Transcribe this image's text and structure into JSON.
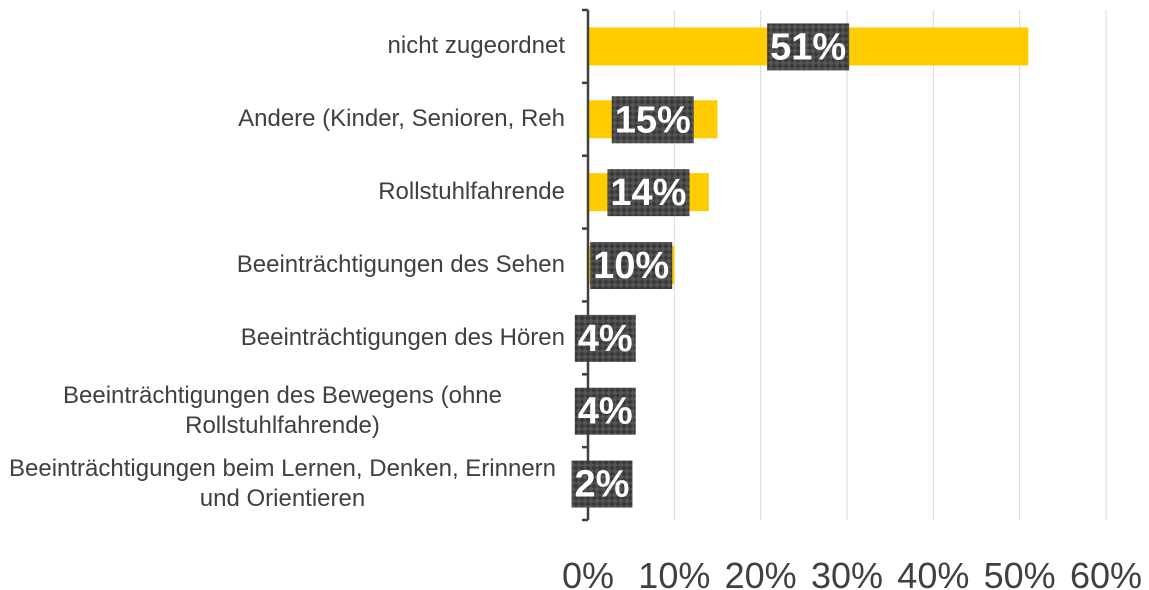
{
  "chart_data": {
    "type": "barh",
    "categories": [
      "nicht zugeordnet",
      "Andere (Kinder, Senioren, Reh",
      "Rollstuhlfahrende",
      "Beeinträchtigungen des Sehen",
      "Beeinträchtigungen des Hören",
      "Beeinträchtigungen des Bewegens (ohne Rollstuhlfahrende)",
      "Beeinträchtigungen beim Lernen, Denken, Erinnern und Orientieren"
    ],
    "values": [
      51,
      15,
      14,
      10,
      4,
      4,
      2
    ],
    "value_labels": [
      "51%",
      "15%",
      "14%",
      "10%",
      "4%",
      "4%",
      "2%"
    ],
    "color": "#ffcc00",
    "xlim": [
      0,
      60
    ],
    "xticks": [
      {
        "value": 0,
        "label": "0%"
      },
      {
        "value": 10,
        "label": "10%"
      },
      {
        "value": 20,
        "label": "20%"
      },
      {
        "value": 30,
        "label": "30%"
      },
      {
        "value": 40,
        "label": "40%"
      },
      {
        "value": 50,
        "label": "50%"
      },
      {
        "value": 60,
        "label": "60%"
      }
    ],
    "grid": true
  }
}
